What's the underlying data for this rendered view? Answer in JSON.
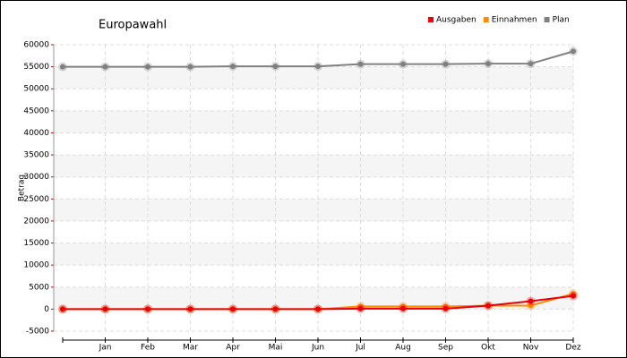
{
  "chart_data": {
    "type": "line",
    "title": "Europawahl",
    "y_label": "Betrag",
    "categories": [
      null,
      "Jan",
      "Feb",
      "Mar",
      "Apr",
      "Mai",
      "Jun",
      "Jul",
      "Aug",
      "Sep",
      "Okt",
      "Nov",
      "Dez"
    ],
    "series": [
      {
        "name": "Ausgaben",
        "color": "#e8000b",
        "values": [
          0,
          0,
          0,
          0,
          0,
          0,
          0,
          100,
          100,
          100,
          800,
          1800,
          3000
        ]
      },
      {
        "name": "Einnahmen",
        "color": "#ff8c00",
        "values": [
          0,
          0,
          0,
          0,
          0,
          0,
          0,
          600,
          600,
          600,
          800,
          800,
          3500
        ]
      },
      {
        "name": "Plan",
        "color": "#808080",
        "values": [
          55000,
          55000,
          55000,
          55000,
          55100,
          55100,
          55100,
          55600,
          55600,
          55600,
          55700,
          55700,
          58500
        ]
      }
    ],
    "ylim": [
      -5000,
      60000
    ],
    "yticks": [
      -5000,
      0,
      5000,
      10000,
      15000,
      20000,
      25000,
      30000,
      35000,
      40000,
      45000,
      50000,
      55000,
      60000
    ],
    "grid": true,
    "legend": "top-right"
  }
}
